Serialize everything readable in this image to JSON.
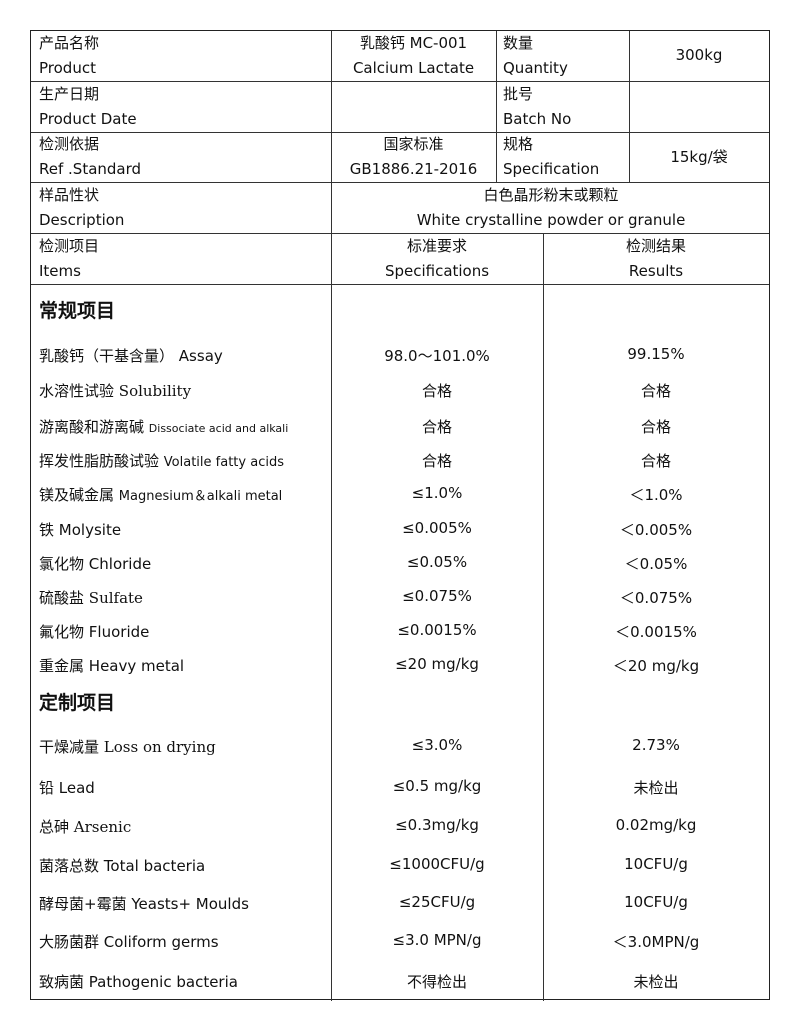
{
  "header": {
    "product_label_cn": "产品名称",
    "product_label_en": "Product",
    "product_value_cn": "乳酸钙 MC-001",
    "product_value_en": "Calcium Lactate",
    "quantity_label_cn": "数量",
    "quantity_label_en": "Quantity",
    "quantity_value": "300kg",
    "date_label_cn": "生产日期",
    "date_label_en": "Product Date",
    "batch_label_cn": "批号",
    "batch_label_en": "Batch No",
    "standard_label_cn": "检测依据",
    "standard_label_en": "Ref .Standard",
    "standard_value_cn": "国家标准",
    "standard_value_en": "GB1886.21-2016",
    "spec_label_cn": "规格",
    "spec_label_en": "Specification",
    "spec_value": "15kg/袋",
    "desc_label_cn": "样品性状",
    "desc_label_en": "Description",
    "desc_value_cn": "白色晶形粉末或颗粒",
    "desc_value_en": "White crystalline powder or granule",
    "items_cn": "检测项目",
    "items_en": "Items",
    "specs_cn": "标准要求",
    "specs_en": "Specifications",
    "results_cn": "检测结果",
    "results_en": "Results"
  },
  "sections": [
    {
      "title": "常规项目",
      "rows": [
        {
          "cn": "乳酸钙（干基含量）",
          "en": "Assay",
          "spec": "98.0～101.0%",
          "result": "99.15%"
        },
        {
          "cn": "水溶性试验",
          "en": "Solubility",
          "spec": "合格",
          "result": "合格",
          "en_style": "serif"
        },
        {
          "cn": "游离酸和游离碱",
          "en": "Dissociate acid and alkali",
          "spec": "合格",
          "result": "合格",
          "en_style": "small"
        },
        {
          "cn": "挥发性脂肪酸试验",
          "en": "Volatile fatty acids",
          "spec": "合格",
          "result": "合格",
          "en_style": "smallish"
        },
        {
          "cn": "镁及碱金属",
          "en": "Magnesium＆alkali metal",
          "spec": "≤1.0%",
          "result": "＜1.0%",
          "en_style": "smallish"
        },
        {
          "cn": "铁",
          "en": "Molysite",
          "spec": "≤0.005%",
          "result": "＜0.005%"
        },
        {
          "cn": "氯化物",
          "en": "Chloride",
          "spec": "≤0.05%",
          "result": "＜0.05%"
        },
        {
          "cn": "硫酸盐",
          "en": "Sulfate",
          "spec": "≤0.075%",
          "result": "＜0.075%",
          "en_style": "serif"
        },
        {
          "cn": "氟化物",
          "en": "Fluoride",
          "spec": "≤0.0015%",
          "result": "＜0.0015%"
        },
        {
          "cn": "重金属",
          "en": "Heavy metal",
          "spec": "≤20 mg/kg",
          "result": "＜20 mg/kg"
        }
      ]
    },
    {
      "title": "定制项目",
      "rows": [
        {
          "cn": "干燥减量",
          "en": "Loss on drying",
          "spec": "≤3.0%",
          "result": "2.73%",
          "en_style": "serif"
        },
        {
          "cn": "铅",
          "en": "Lead",
          "spec": "≤0.5 mg/kg",
          "result": "未检出"
        },
        {
          "cn": "总砷",
          "en": "Arsenic",
          "spec": "≤0.3mg/kg",
          "result": "0.02mg/kg",
          "en_style": "serif"
        },
        {
          "cn": "菌落总数",
          "en": "Total   bacteria",
          "spec": "≤1000CFU/g",
          "result": "10CFU/g"
        },
        {
          "cn": "酵母菌+霉菌",
          "en": "Yeasts+ Moulds",
          "spec": "≤25CFU/g",
          "result": "10CFU/g"
        },
        {
          "cn": "大肠菌群",
          "en": "Coliform germs",
          "spec": "≤3.0 MPN/g",
          "result": "＜3.0MPN/g"
        },
        {
          "cn": "致病菌",
          "en": "Pathogenic bacteria",
          "spec": "不得检出",
          "result": "未检出"
        }
      ]
    }
  ]
}
